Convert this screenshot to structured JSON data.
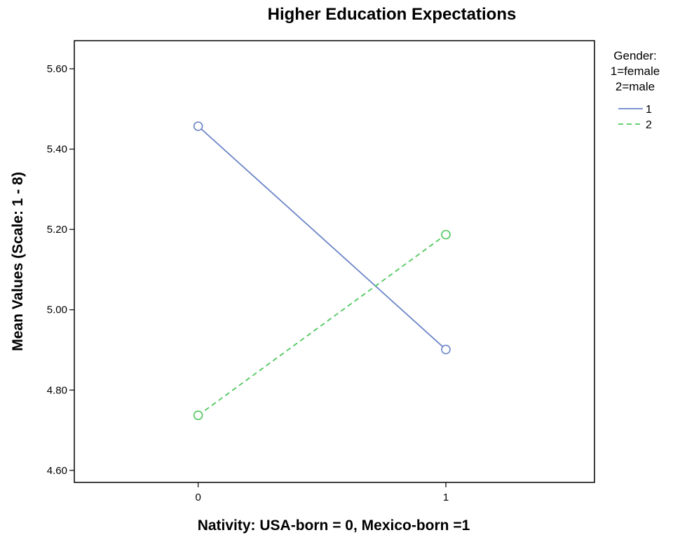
{
  "chart_data": {
    "type": "line",
    "title": "Higher Education Expectations",
    "xlabel": "Nativity: USA-born = 0, Mexico-born =1",
    "ylabel": "Mean Values (Scale: 1 - 8)",
    "x": [
      0,
      1
    ],
    "x_tick_labels": [
      "0",
      "1"
    ],
    "xlim": [
      -0.5,
      1.6
    ],
    "ylim": [
      4.57,
      5.67
    ],
    "y_ticks": [
      4.6,
      4.8,
      5.0,
      5.2,
      5.4,
      5.6
    ],
    "y_tick_labels": [
      "4.60",
      "4.80",
      "5.00",
      "5.20",
      "5.40",
      "5.60"
    ],
    "grid": false,
    "legend": {
      "title_lines": [
        "Gender:",
        "1=female",
        "2=male"
      ],
      "placement": "top-right outside"
    },
    "series": [
      {
        "name": "1",
        "values": [
          5.457,
          4.901
        ],
        "color": "#6b84c8",
        "dash": "solid"
      },
      {
        "name": "2",
        "values": [
          4.737,
          5.187
        ],
        "color": "#4ec75b",
        "dash": "dashed"
      }
    ]
  }
}
